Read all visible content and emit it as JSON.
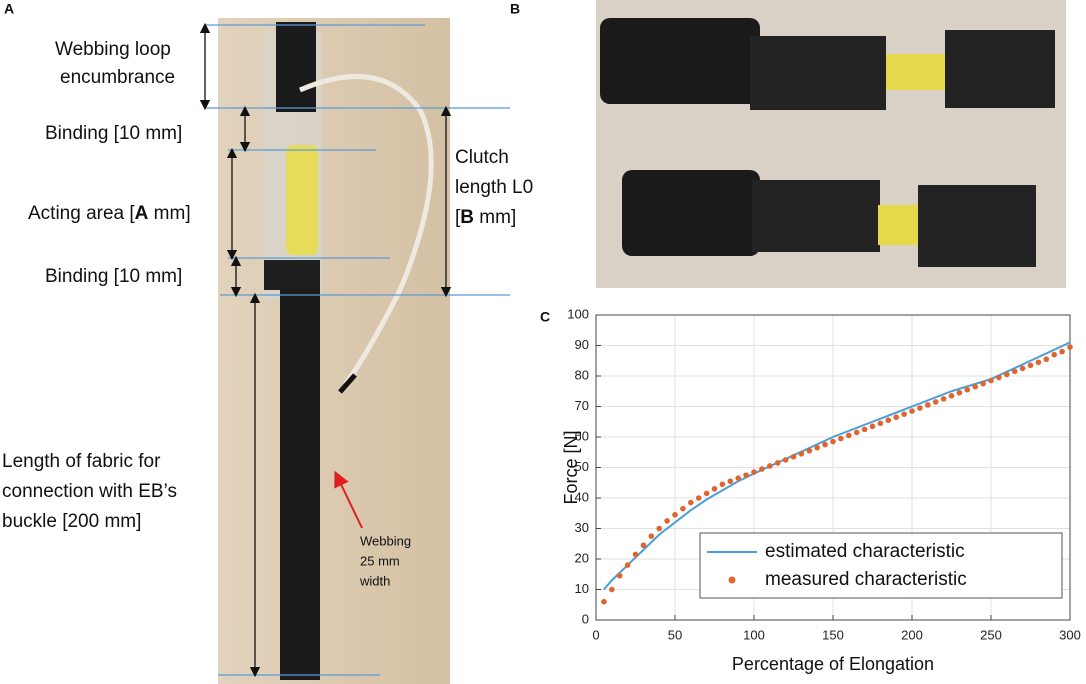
{
  "panels": {
    "A": {
      "label": "A",
      "loop": [
        "Webbing loop",
        "encumbrance"
      ],
      "binding_top": "Binding [10 mm]",
      "acting": [
        "Acting area [",
        "A",
        " mm]"
      ],
      "binding_bottom": "Binding [10 mm]",
      "clutch": [
        "Clutch",
        "length L0"
      ],
      "clutch_b": [
        "[",
        "B",
        " mm]"
      ],
      "fabric": [
        "Length of fabric for",
        "connection with EB’s",
        "buckle [200 mm]"
      ],
      "webbing": [
        "Webbing",
        "25 mm",
        "width"
      ]
    },
    "B": {
      "label": "B"
    }
  },
  "chart_data": {
    "type": "line-scatter",
    "panel_label": "C",
    "xlabel": "Percentage of Elongation",
    "ylabel": "Force [N]",
    "xlim": [
      0,
      300
    ],
    "ylim": [
      0,
      100
    ],
    "xticks": [
      0,
      50,
      100,
      150,
      200,
      250,
      300
    ],
    "yticks": [
      0,
      10,
      20,
      30,
      40,
      50,
      60,
      70,
      80,
      90,
      100
    ],
    "grid": true,
    "legend": "lower right",
    "series": [
      {
        "name": "estimated characteristic",
        "kind": "line",
        "color": "#4a9fd8",
        "x": [
          5,
          10,
          20,
          30,
          40,
          50,
          60,
          70,
          80,
          90,
          100,
          125,
          150,
          175,
          200,
          225,
          250,
          275,
          300
        ],
        "values": [
          10,
          13,
          18,
          23,
          28,
          32,
          36,
          39.5,
          42.5,
          45.5,
          48,
          54,
          60,
          65,
          70,
          75,
          79,
          85,
          91
        ]
      },
      {
        "name": "measured characteristic",
        "kind": "scatter",
        "color": "#e0642e",
        "x": [
          5,
          10,
          15,
          20,
          25,
          30,
          35,
          40,
          45,
          50,
          55,
          60,
          65,
          70,
          75,
          80,
          85,
          90,
          95,
          100,
          105,
          110,
          115,
          120,
          125,
          130,
          135,
          140,
          145,
          150,
          155,
          160,
          165,
          170,
          175,
          180,
          185,
          190,
          195,
          200,
          205,
          210,
          215,
          220,
          225,
          230,
          235,
          240,
          245,
          250,
          255,
          260,
          265,
          270,
          275,
          280,
          285,
          290,
          295,
          300
        ],
        "values": [
          6,
          10,
          14.5,
          18,
          21.5,
          24.5,
          27.5,
          30,
          32.5,
          34.5,
          36.5,
          38.5,
          40,
          41.5,
          43,
          44.5,
          45.5,
          46.5,
          47.5,
          48.5,
          49.5,
          50.5,
          51.5,
          52.5,
          53.5,
          54.5,
          55.5,
          56.5,
          57.5,
          58.5,
          59.5,
          60.5,
          61.5,
          62.5,
          63.5,
          64.5,
          65.5,
          66.5,
          67.5,
          68.5,
          69.5,
          70.5,
          71.5,
          72.5,
          73.5,
          74.5,
          75.5,
          76.5,
          77.5,
          78.5,
          79.5,
          80.5,
          81.5,
          82.5,
          83.5,
          84.5,
          85.5,
          87,
          88,
          89.5
        ]
      }
    ]
  }
}
